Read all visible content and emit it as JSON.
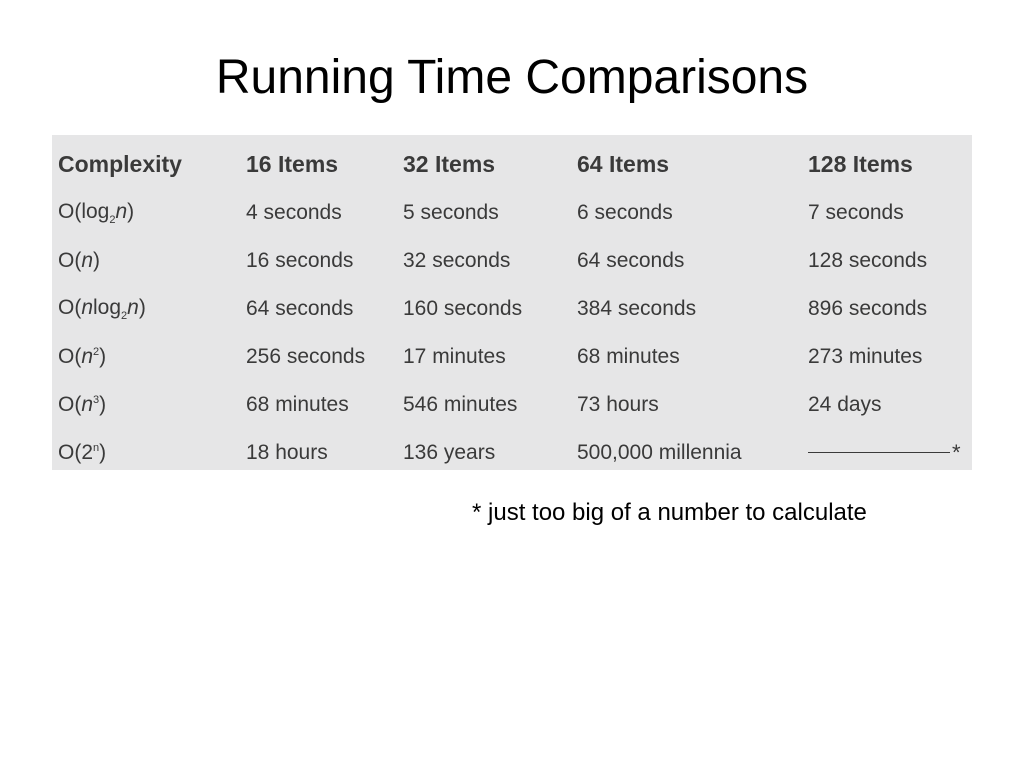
{
  "title": "Running Time Comparisons",
  "table": {
    "headers": [
      "Complexity",
      "16 Items",
      "32 Items",
      "64 Items",
      "128 Items"
    ],
    "rows": [
      {
        "complexity": {
          "pre": "O(log",
          "sub": "2",
          "mid": "",
          "var": "n",
          "sup": "",
          "post": ")"
        },
        "cells": [
          "4 seconds",
          "5 seconds",
          "6 seconds",
          "7 seconds"
        ]
      },
      {
        "complexity": {
          "pre": "O(",
          "sub": "",
          "mid": "",
          "var": "n",
          "sup": "",
          "post": ")"
        },
        "cells": [
          "16 seconds",
          "32 seconds",
          "64 seconds",
          "128 seconds"
        ]
      },
      {
        "complexity": {
          "pre": "O(",
          "var1": "n",
          "log": "log",
          "sub": "2",
          "var": "n",
          "post": ")"
        },
        "cells": [
          "64 seconds",
          "160 seconds",
          "384 seconds",
          "896 seconds"
        ]
      },
      {
        "complexity": {
          "pre": "O(",
          "var": "n",
          "sup": "2",
          "post": ")"
        },
        "cells": [
          "256 seconds",
          "17 minutes",
          "68 minutes",
          "273 minutes"
        ]
      },
      {
        "complexity": {
          "pre": "O(",
          "var": "n",
          "sup": "3",
          "post": ")"
        },
        "cells": [
          "68 minutes",
          "546 minutes",
          "73 hours",
          "24 days"
        ]
      },
      {
        "complexity": {
          "pre": "O(2",
          "sup": "n",
          "post": ")"
        },
        "cells": [
          "18 hours",
          "136 years",
          "500,000 millennia",
          ""
        ]
      }
    ],
    "last_cell_marker": "*"
  },
  "footnote": "* just too big of a number to calculate"
}
